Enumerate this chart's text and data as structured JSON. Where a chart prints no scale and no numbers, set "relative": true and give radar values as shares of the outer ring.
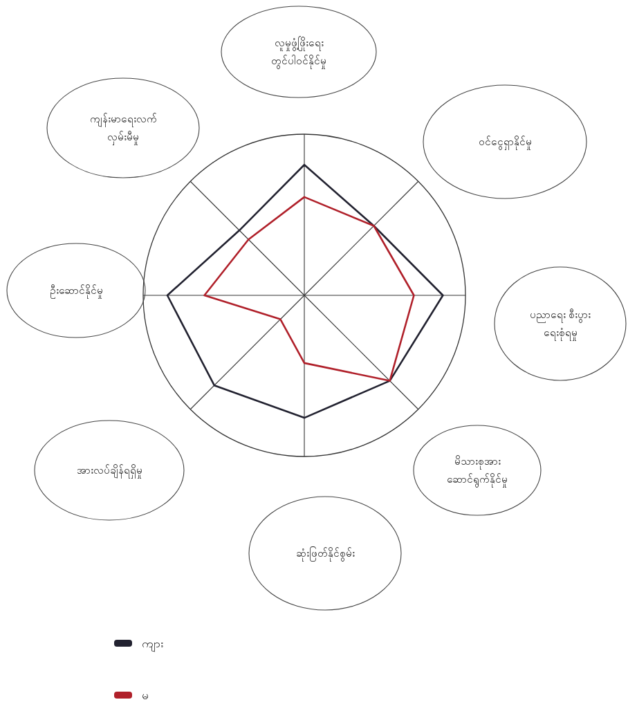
{
  "chart_data": {
    "type": "radar",
    "relative": true,
    "legend": "bottom",
    "categories": [
      "လူမှုဖွံ့ဖြိုးရေး တွင်ပါဝင်နိုင်မှု",
      "ဝင်ငွေရှာနိုင်မှု",
      "ပညာရေး စီးပွား ရေးစုံရမှု",
      "မိသားစုအား ဆောင်ရွက်နိုင်မှု",
      "ဆုံးဖြတ်နိုင်စွမ်း",
      "အားလပ်ချိန်ရရှိမှု",
      "ဦးဆောင်နိုင်မှု",
      "ကျန်းမာရေးလက် လှမ်းမီမှု"
    ],
    "series": [
      {
        "name": "ကျား",
        "color": "#222230",
        "values": [
          0.81,
          0.61,
          0.86,
          0.75,
          0.76,
          0.79,
          0.85,
          0.57
        ]
      },
      {
        "name": "မ",
        "color": "#b0202a",
        "values": [
          0.61,
          0.61,
          0.68,
          0.75,
          0.42,
          0.21,
          0.62,
          0.49
        ]
      }
    ]
  }
}
